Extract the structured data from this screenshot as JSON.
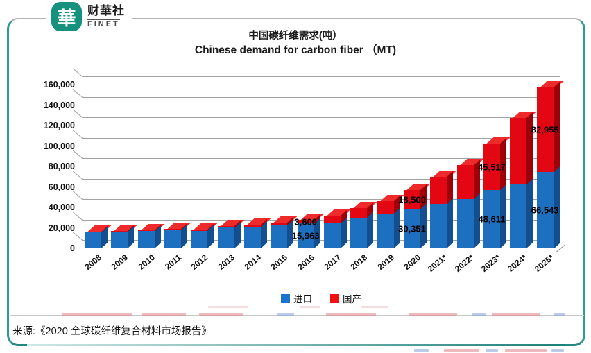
{
  "logo": {
    "symbol": "華",
    "name_zh": "财華社",
    "name_en": "FINET"
  },
  "source_note": "来源:《2020 全球碳纤维复合材料市场报告》",
  "chart_data": {
    "type": "bar",
    "variant": "stacked-3d-column",
    "title_zh": "中国碳纤维需求(吨）",
    "title_en": "Chinese demand for carbon fiber （MT)",
    "categories": [
      "2008",
      "2009",
      "2010",
      "2011",
      "2012",
      "2013",
      "2014",
      "2015",
      "2016",
      "2017",
      "2018",
      "2019",
      "2020",
      "2021*",
      "2022*",
      "2023*",
      "2024*",
      "2025*"
    ],
    "series": [
      {
        "name": "进口",
        "color": "#1d6fbf",
        "side_color": "#134f8f",
        "top_color": "#2a7fd0",
        "values": [
          7350,
          7750,
          8600,
          9500,
          8960,
          12000,
          12600,
          14300,
          15963,
          16087,
          22000,
          25840,
          30351,
          35000,
          40000,
          48611,
          54000,
          66543
        ]
      },
      {
        "name": "国产",
        "color": "#e30613",
        "side_color": "#9d0008",
        "top_color": "#ef2a2a",
        "values": [
          850,
          850,
          1000,
          1150,
          1040,
          1700,
          2100,
          2500,
          3600,
          7400,
          9000,
          12000,
          18500,
          26500,
          33000,
          45517,
          65000,
          82955
        ]
      }
    ],
    "data_labels": [
      {
        "category": "2016",
        "series": "国产",
        "text": "3,600"
      },
      {
        "category": "2016",
        "series": "进口",
        "text": "15,963"
      },
      {
        "category": "2020",
        "series": "国产",
        "text": "18,500"
      },
      {
        "category": "2020",
        "series": "进口",
        "text": "30,351"
      },
      {
        "category": "2023*",
        "series": "国产",
        "text": "45,517"
      },
      {
        "category": "2023*",
        "series": "进口",
        "text": "48,611"
      },
      {
        "category": "2025*",
        "series": "国产",
        "text": "82,955"
      },
      {
        "category": "2025*",
        "series": "进口",
        "text": "66,543"
      }
    ],
    "y_axis": {
      "min": 0,
      "max": 160000,
      "step": 20000,
      "tick_labels": [
        "160,000",
        "140,000",
        "120,000",
        "100,000",
        "80,000",
        "60,000",
        "40,000",
        "20,000",
        "0"
      ]
    },
    "legend": [
      {
        "label": "进口",
        "color": "#1874CD"
      },
      {
        "label": "国产",
        "color": "#ee1111"
      }
    ],
    "grid": true,
    "legend_position": "bottom"
  }
}
